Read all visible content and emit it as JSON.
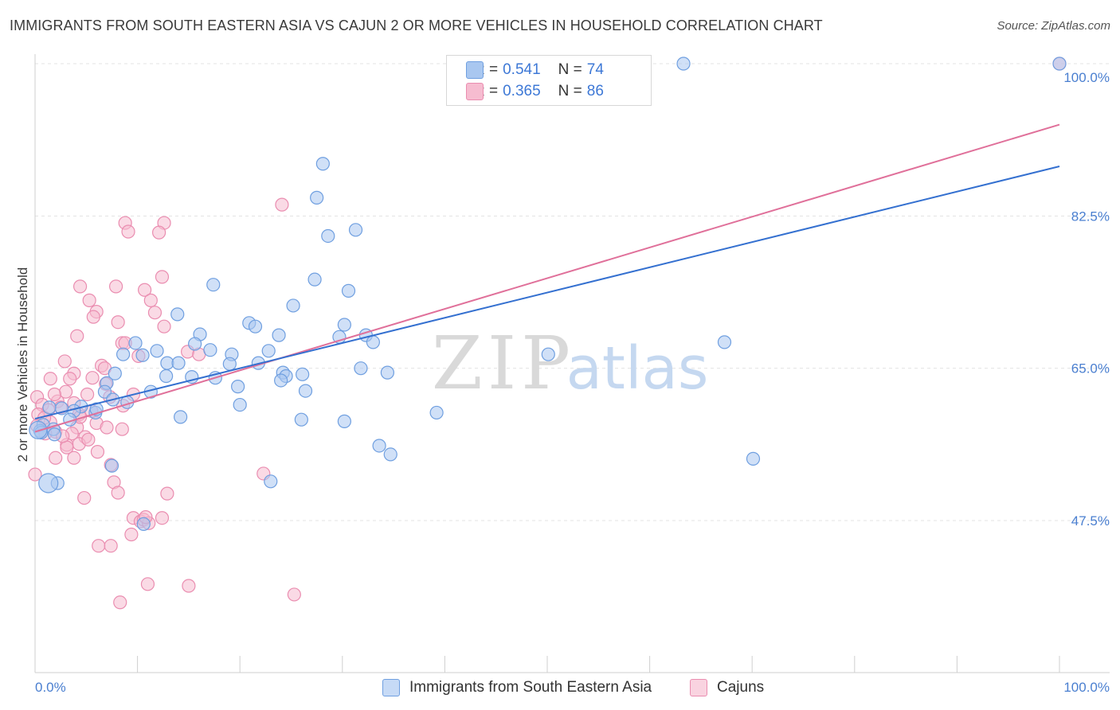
{
  "title": "IMMIGRANTS FROM SOUTH EASTERN ASIA VS CAJUN 2 OR MORE VEHICLES IN HOUSEHOLD CORRELATION CHART",
  "source": "Source: ZipAtlas.com",
  "watermark": {
    "zip": "ZIP",
    "atlas": "atlas"
  },
  "legend": {
    "rows": [
      {
        "r_label": "R =",
        "r_value": "0.541",
        "n_label": "N =",
        "n_value": "74"
      },
      {
        "r_label": "R =",
        "r_value": "0.365",
        "n_label": "N =",
        "n_value": "86"
      }
    ]
  },
  "colors": {
    "blue_fill": "#a9c7f0",
    "blue_stroke": "#6f9fe0",
    "blue_line": "#3470d0",
    "pink_fill": "#f6bcd0",
    "pink_stroke": "#ea8db0",
    "pink_line": "#e0709a",
    "tick_text": "#4a7fd0"
  },
  "chart_data": {
    "type": "scatter",
    "title": "IMMIGRANTS FROM SOUTH EASTERN ASIA VS CAJUN 2 OR MORE VEHICLES IN HOUSEHOLD CORRELATION CHART",
    "xlabel": "",
    "ylabel": "2 or more Vehicles in Household",
    "xlim": [
      0,
      100
    ],
    "ylim": [
      31.5,
      102
    ],
    "x_tick_labels": [
      "0.0%",
      "100.0%"
    ],
    "y_ticks": [
      47.5,
      65.0,
      82.5,
      100.0
    ],
    "y_tick_labels": [
      "47.5%",
      "65.0%",
      "82.5%",
      "100.0%"
    ],
    "grid": "horizontal dashed",
    "legend_position": "bottom",
    "series": [
      {
        "name": "Immigrants from South Eastern Asia",
        "trendline": {
          "x": [
            0,
            100
          ],
          "y": [
            59.2,
            88.2
          ]
        },
        "points": [
          [
            63.3,
            100.0
          ],
          [
            100.0,
            100.0
          ],
          [
            28.1,
            88.5
          ],
          [
            27.5,
            84.6
          ],
          [
            28.6,
            80.2
          ],
          [
            31.3,
            80.9
          ],
          [
            17.4,
            74.6
          ],
          [
            27.3,
            75.2
          ],
          [
            30.6,
            73.9
          ],
          [
            25.2,
            72.2
          ],
          [
            13.9,
            71.2
          ],
          [
            20.9,
            70.2
          ],
          [
            21.5,
            69.8
          ],
          [
            30.2,
            70.0
          ],
          [
            23.8,
            68.8
          ],
          [
            16.1,
            68.9
          ],
          [
            29.7,
            68.6
          ],
          [
            32.3,
            68.8
          ],
          [
            33.0,
            68.0
          ],
          [
            67.3,
            68.0
          ],
          [
            9.8,
            67.9
          ],
          [
            15.6,
            67.8
          ],
          [
            17.1,
            67.1
          ],
          [
            11.9,
            67.0
          ],
          [
            22.8,
            67.0
          ],
          [
            8.6,
            66.6
          ],
          [
            10.5,
            66.5
          ],
          [
            19.2,
            66.6
          ],
          [
            12.9,
            65.6
          ],
          [
            14.0,
            65.6
          ],
          [
            19.0,
            65.5
          ],
          [
            21.8,
            65.6
          ],
          [
            31.8,
            65.0
          ],
          [
            34.4,
            64.5
          ],
          [
            50.1,
            66.6
          ],
          [
            7.8,
            64.4
          ],
          [
            12.8,
            64.1
          ],
          [
            15.3,
            64.0
          ],
          [
            17.6,
            63.9
          ],
          [
            24.2,
            64.5
          ],
          [
            24.5,
            64.1
          ],
          [
            26.1,
            64.3
          ],
          [
            7.0,
            63.3
          ],
          [
            6.8,
            62.3
          ],
          [
            11.3,
            62.3
          ],
          [
            24.0,
            63.6
          ],
          [
            19.8,
            62.9
          ],
          [
            26.4,
            62.4
          ],
          [
            7.6,
            61.4
          ],
          [
            2.6,
            60.4
          ],
          [
            4.5,
            60.6
          ],
          [
            9.0,
            61.1
          ],
          [
            20.0,
            60.8
          ],
          [
            1.4,
            60.5
          ],
          [
            3.8,
            60.1
          ],
          [
            5.9,
            59.9
          ],
          [
            6.0,
            60.3
          ],
          [
            14.2,
            59.4
          ],
          [
            26.0,
            59.1
          ],
          [
            30.2,
            58.9
          ],
          [
            39.2,
            59.9
          ],
          [
            0.8,
            58.5
          ],
          [
            1.8,
            58.0
          ],
          [
            0.5,
            57.8
          ],
          [
            3.4,
            59.1
          ],
          [
            1.9,
            57.4
          ],
          [
            33.6,
            56.1
          ],
          [
            34.7,
            55.1
          ],
          [
            70.1,
            54.6
          ],
          [
            7.5,
            53.8
          ],
          [
            2.2,
            51.8
          ],
          [
            23.0,
            52.0
          ],
          [
            10.6,
            47.1
          ],
          [
            0.6,
            57.6
          ]
        ]
      },
      {
        "name": "Cajuns",
        "trendline": {
          "x": [
            0,
            100
          ],
          "y": [
            57.7,
            93.0
          ]
        },
        "points": [
          [
            100.0,
            100.0
          ],
          [
            24.1,
            83.8
          ],
          [
            8.8,
            81.7
          ],
          [
            9.1,
            80.7
          ],
          [
            12.6,
            81.7
          ],
          [
            12.1,
            80.6
          ],
          [
            12.4,
            75.5
          ],
          [
            4.4,
            74.4
          ],
          [
            7.9,
            74.4
          ],
          [
            10.7,
            74.0
          ],
          [
            11.3,
            72.8
          ],
          [
            5.3,
            72.8
          ],
          [
            6.0,
            71.5
          ],
          [
            11.7,
            71.4
          ],
          [
            5.7,
            70.9
          ],
          [
            8.1,
            70.3
          ],
          [
            12.6,
            69.8
          ],
          [
            4.1,
            68.7
          ],
          [
            8.5,
            67.9
          ],
          [
            8.8,
            67.9
          ],
          [
            14.9,
            66.9
          ],
          [
            16.0,
            66.6
          ],
          [
            2.9,
            65.8
          ],
          [
            6.5,
            65.3
          ],
          [
            3.8,
            64.4
          ],
          [
            1.5,
            63.8
          ],
          [
            3.4,
            63.8
          ],
          [
            6.9,
            63.2
          ],
          [
            0.2,
            61.7
          ],
          [
            3.0,
            62.3
          ],
          [
            5.1,
            62.0
          ],
          [
            7.3,
            61.7
          ],
          [
            9.6,
            62.0
          ],
          [
            2.2,
            61.2
          ],
          [
            3.8,
            61.0
          ],
          [
            0.7,
            60.8
          ],
          [
            1.3,
            60.2
          ],
          [
            2.5,
            60.5
          ],
          [
            8.6,
            60.7
          ],
          [
            5.5,
            60.1
          ],
          [
            0.3,
            59.7
          ],
          [
            4.3,
            59.7
          ],
          [
            1.5,
            58.8
          ],
          [
            6.0,
            58.7
          ],
          [
            0.2,
            58.4
          ],
          [
            4.1,
            58.2
          ],
          [
            7.0,
            58.2
          ],
          [
            8.5,
            58.0
          ],
          [
            2.0,
            57.7
          ],
          [
            1.0,
            57.5
          ],
          [
            3.6,
            57.5
          ],
          [
            4.9,
            57.1
          ],
          [
            3.1,
            56.2
          ],
          [
            4.3,
            56.3
          ],
          [
            3.1,
            55.9
          ],
          [
            6.1,
            55.4
          ],
          [
            2.0,
            54.7
          ],
          [
            3.8,
            54.7
          ],
          [
            7.4,
            53.9
          ],
          [
            0.0,
            52.8
          ],
          [
            22.3,
            52.9
          ],
          [
            7.7,
            51.9
          ],
          [
            8.1,
            50.7
          ],
          [
            12.9,
            50.6
          ],
          [
            4.8,
            50.1
          ],
          [
            12.4,
            47.8
          ],
          [
            9.6,
            47.8
          ],
          [
            10.3,
            47.4
          ],
          [
            10.6,
            47.6
          ],
          [
            11.1,
            47.2
          ],
          [
            9.4,
            45.9
          ],
          [
            6.2,
            44.6
          ],
          [
            7.4,
            44.6
          ],
          [
            11.0,
            40.2
          ],
          [
            15.0,
            40.0
          ],
          [
            25.3,
            39.0
          ],
          [
            8.3,
            38.1
          ],
          [
            10.8,
            47.9
          ],
          [
            5.6,
            63.9
          ],
          [
            1.9,
            62.0
          ],
          [
            4.4,
            59.4
          ],
          [
            2.7,
            57.2
          ],
          [
            5.2,
            56.8
          ],
          [
            6.8,
            65.0
          ],
          [
            10.1,
            66.4
          ],
          [
            0.9,
            59.3
          ]
        ]
      }
    ]
  },
  "bottom_legend": {
    "items": [
      {
        "label": "Immigrants from South Eastern Asia"
      },
      {
        "label": "Cajuns"
      }
    ]
  }
}
